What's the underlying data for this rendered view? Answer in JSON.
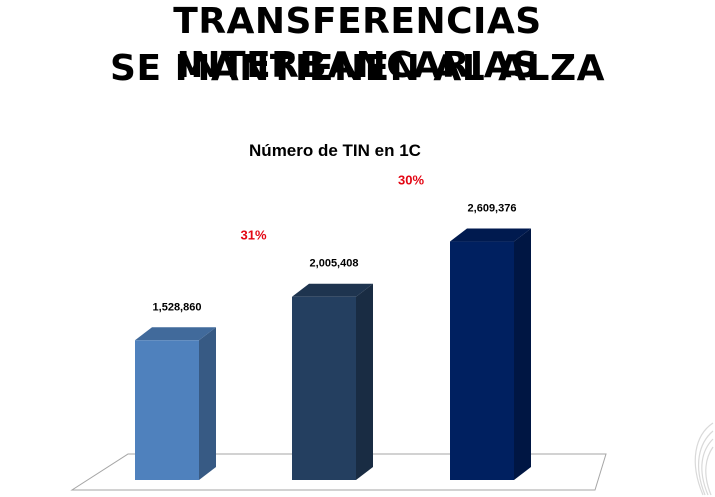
{
  "headline": {
    "line1": "TRANSFERENCIAS INTERBANCARIAS",
    "line2": "SE MANTIENEN AL ALZA"
  },
  "chart_data": {
    "type": "bar",
    "title": "Número de TIN en 1C",
    "xlabel": "",
    "ylabel": "",
    "ylim": [
      0,
      2900000
    ],
    "grid": false,
    "legend": "none",
    "categories": [
      "",
      "",
      ""
    ],
    "values": [
      1528860,
      2005408,
      2609376
    ],
    "value_labels": [
      "1,528,860",
      "2,005,408",
      "2,609,376"
    ],
    "growth_labels": [
      "31%",
      "30%"
    ],
    "colors": {
      "bars": [
        "#4f81bd",
        "#243f60",
        "#002060"
      ],
      "growth": "#e30613"
    }
  }
}
